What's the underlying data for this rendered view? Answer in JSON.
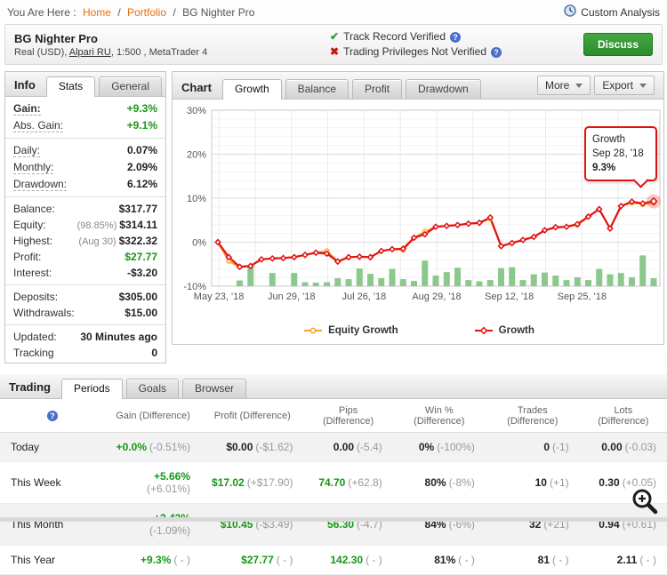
{
  "breadcrumb": {
    "prefix": "You Are Here :",
    "links": [
      {
        "label": "Home"
      },
      {
        "label": "Portfolio"
      }
    ],
    "separator": "/",
    "current": "BG Nighter Pro",
    "custom_analysis": "Custom Analysis"
  },
  "header": {
    "title": "BG Nighter Pro",
    "subtitle_pre": "Real (USD), ",
    "broker": "Alpari RU",
    "subtitle_post": ", 1:500 , MetaTrader 4",
    "verifications": [
      {
        "state": "verified",
        "label": "Track Record Verified"
      },
      {
        "state": "not-verified",
        "label": "Trading Privileges Not Verified"
      }
    ],
    "discuss_label": "Discuss"
  },
  "icons": {
    "check": "✔",
    "cross": "✖",
    "info": "?"
  },
  "info_panel": {
    "title": "Info",
    "tabs": [
      {
        "label": "Stats",
        "active": true
      },
      {
        "label": "General",
        "active": false
      }
    ],
    "groups": [
      [
        {
          "label": "Gain:",
          "value": "+9.3%",
          "green": true,
          "bold": true,
          "dotted": true
        },
        {
          "label": "Abs. Gain:",
          "value": "+9.1%",
          "green": true,
          "dotted": true
        }
      ],
      [
        {
          "label": "Daily:",
          "value": "0.07%",
          "dotted": true
        },
        {
          "label": "Monthly:",
          "value": "2.09%",
          "dotted": true
        },
        {
          "label": "Drawdown:",
          "value": "6.12%",
          "dotted": true
        }
      ],
      [
        {
          "label": "Balance:",
          "value": "$317.77"
        },
        {
          "label": "Equity:",
          "prefix": "(98.85%)",
          "value": "$314.11"
        },
        {
          "label": "Highest:",
          "prefix": "(Aug 30)",
          "value": "$322.32"
        },
        {
          "label": "Profit:",
          "value": "$27.77",
          "green": true
        },
        {
          "label": "Interest:",
          "value": "-$3.20"
        }
      ],
      [
        {
          "label": "Deposits:",
          "value": "$305.00"
        },
        {
          "label": "Withdrawals:",
          "value": "$15.00"
        }
      ],
      [
        {
          "label": "Updated:",
          "value": "30 Minutes ago"
        },
        {
          "label": "Tracking",
          "value": "0"
        }
      ]
    ]
  },
  "chart_panel": {
    "title": "Chart",
    "tabs": [
      {
        "label": "Growth",
        "active": true
      },
      {
        "label": "Balance",
        "active": false
      },
      {
        "label": "Profit",
        "active": false
      },
      {
        "label": "Drawdown",
        "active": false
      }
    ],
    "more_label": "More",
    "export_label": "Export",
    "tooltip": {
      "series": "Growth",
      "date": "Sep 28, '18",
      "value": "9.3%"
    }
  },
  "chart_data": {
    "type": "line",
    "title": "Growth",
    "ylim": [
      -10,
      30
    ],
    "ytick_values": [
      30,
      20,
      10,
      0,
      -10
    ],
    "ytick_labels": [
      "30%",
      "20%",
      "10%",
      "0%",
      "-10%"
    ],
    "xtick_labels": [
      "May 23, '18",
      "Jun 29, '18",
      "Jul 26, '18",
      "Aug 29, '18",
      "Sep 12, '18",
      "Sep 25, '18"
    ],
    "grid": true,
    "legend_position": "bottom",
    "series": [
      {
        "name": "Equity Growth",
        "color": "#f7a329",
        "marker": "circle",
        "values": [
          0.0,
          -4.3,
          -5.7,
          -5.4,
          -3.9,
          -3.7,
          -3.6,
          -3.4,
          -2.9,
          -2.4,
          -2.0,
          -4.4,
          -3.4,
          -3.3,
          -3.4,
          -2.0,
          -1.6,
          -1.8,
          1.0,
          2.4,
          3.5,
          3.7,
          3.9,
          4.2,
          4.4,
          5.3,
          -0.9,
          -0.2,
          0.5,
          1.2,
          2.7,
          3.3,
          3.5,
          3.9,
          5.8,
          7.5,
          3.1,
          8.2,
          9.0,
          8.6,
          8.9
        ]
      },
      {
        "name": "Growth",
        "color": "#e11212",
        "marker": "diamond",
        "values": [
          0.0,
          -3.4,
          -5.6,
          -5.4,
          -3.9,
          -3.7,
          -3.6,
          -3.4,
          -2.9,
          -2.4,
          -2.6,
          -4.4,
          -3.4,
          -3.3,
          -3.4,
          -2.0,
          -1.6,
          -1.5,
          1.0,
          1.8,
          3.5,
          3.7,
          3.9,
          4.2,
          4.4,
          5.6,
          -0.9,
          -0.2,
          0.5,
          1.2,
          2.7,
          3.4,
          3.5,
          4.1,
          5.8,
          7.5,
          3.1,
          8.2,
          9.2,
          8.8,
          9.3
        ]
      }
    ],
    "bars": {
      "color": "#8bc88b",
      "values": [
        0,
        0,
        1.3,
        4.6,
        0,
        3.0,
        0,
        3.0,
        0.9,
        0.8,
        0.9,
        1.8,
        1.6,
        4.0,
        2.8,
        1.8,
        3.9,
        1.6,
        1.2,
        5.8,
        2.4,
        3.2,
        4.2,
        1.4,
        1.1,
        1.4,
        4.1,
        4.3,
        1.4,
        2.7,
        3.1,
        2.4,
        1.4,
        2.0,
        1.4,
        3.9,
        2.7,
        3.0,
        2.0,
        7.0,
        1.8
      ]
    },
    "final_point": {
      "date": "Sep 28, '18",
      "growth": 9.3
    }
  },
  "trading": {
    "title": "Trading",
    "tabs": [
      {
        "label": "Periods",
        "active": true
      },
      {
        "label": "Goals",
        "active": false
      },
      {
        "label": "Browser",
        "active": false
      }
    ],
    "columns": [
      "Gain (Difference)",
      "Profit (Difference)",
      "Pips (Difference)",
      "Win % (Difference)",
      "Trades (Difference)",
      "Lots (Difference)"
    ],
    "rows": [
      {
        "period": "Today",
        "cells": [
          {
            "main": "+0.0%",
            "diff": "(-0.51%)",
            "green": true
          },
          {
            "main": "$0.00",
            "diff": "(-$1.62)"
          },
          {
            "main": "0.00",
            "diff": "(-5.4)"
          },
          {
            "main": "0%",
            "diff": "(-100%)"
          },
          {
            "main": "0",
            "diff": "(-1)"
          },
          {
            "main": "0.00",
            "diff": "(-0.03)"
          }
        ]
      },
      {
        "period": "This Week",
        "cells": [
          {
            "main": "+5.66%",
            "diff": "(+6.01%)",
            "green": true
          },
          {
            "main": "$17.02",
            "diff": "(+$17.90)",
            "green": true
          },
          {
            "main": "74.70",
            "diff": "(+62.8)",
            "green": true
          },
          {
            "main": "80%",
            "diff": "(-8%)"
          },
          {
            "main": "10",
            "diff": "(+1)"
          },
          {
            "main": "0.30",
            "diff": "(+0.05)"
          }
        ]
      },
      {
        "period": "This Month",
        "cells": [
          {
            "main": "+3.43%",
            "diff": "(-1.09%)",
            "green": true
          },
          {
            "main": "$10.45",
            "diff": "(-$3.49)",
            "green": true
          },
          {
            "main": "56.30",
            "diff": "(-4.7)",
            "green": true
          },
          {
            "main": "84%",
            "diff": "(-6%)"
          },
          {
            "main": "32",
            "diff": "(+21)"
          },
          {
            "main": "0.94",
            "diff": "(+0.61)"
          }
        ]
      },
      {
        "period": "This Year",
        "cells": [
          {
            "main": "+9.3%",
            "diff": "( - )",
            "green": true
          },
          {
            "main": "$27.77",
            "diff": "( - )",
            "green": true
          },
          {
            "main": "142.30",
            "diff": "( - )",
            "green": true
          },
          {
            "main": "81%",
            "diff": "( - )"
          },
          {
            "main": "81",
            "diff": "( - )"
          },
          {
            "main": "2.11",
            "diff": "( - )"
          }
        ]
      }
    ]
  },
  "colors": {
    "growth_line": "#e11212",
    "equity_line": "#f7a329",
    "bars": "#8bc88b",
    "positive_text": "#159815",
    "link_orange": "#e8720c",
    "discuss_green": "#2c8c2c"
  }
}
